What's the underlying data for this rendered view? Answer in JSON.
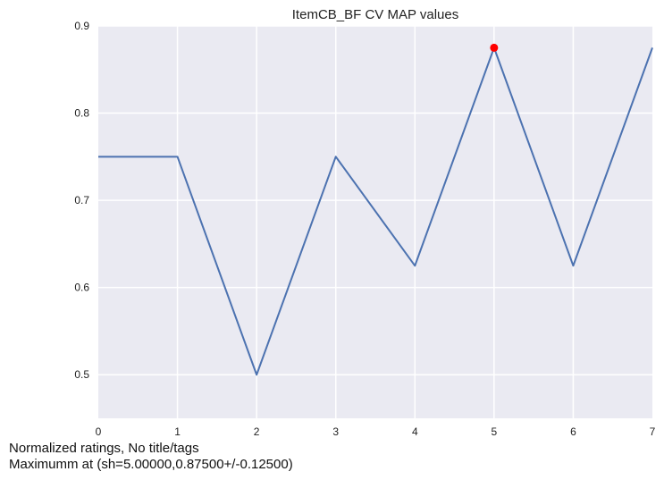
{
  "chart_data": {
    "type": "line",
    "title": "ItemCB_BF CV MAP values",
    "xlabel": "",
    "ylabel": "",
    "x": [
      0,
      1,
      2,
      3,
      4,
      5,
      6,
      7
    ],
    "series": [
      {
        "values": [
          0.75,
          0.75,
          0.5,
          0.75,
          0.625,
          0.875,
          0.625,
          0.875
        ],
        "color": "#4c72b0"
      }
    ],
    "highlight_point": {
      "x": 5,
      "y": 0.875,
      "color": "#ff0000"
    },
    "xlim": [
      0,
      7
    ],
    "ylim": [
      0.45,
      0.9
    ],
    "xticks": [
      0,
      1,
      2,
      3,
      4,
      5,
      6,
      7
    ],
    "yticks": [
      0.5,
      0.6,
      0.7,
      0.8,
      0.9
    ],
    "grid": true,
    "background": "#eaeaf2"
  },
  "captions": {
    "line1": "Normalized ratings, No title/tags",
    "line2": "Maximumm at (sh=5.00000,0.87500+/-0.12500)"
  }
}
